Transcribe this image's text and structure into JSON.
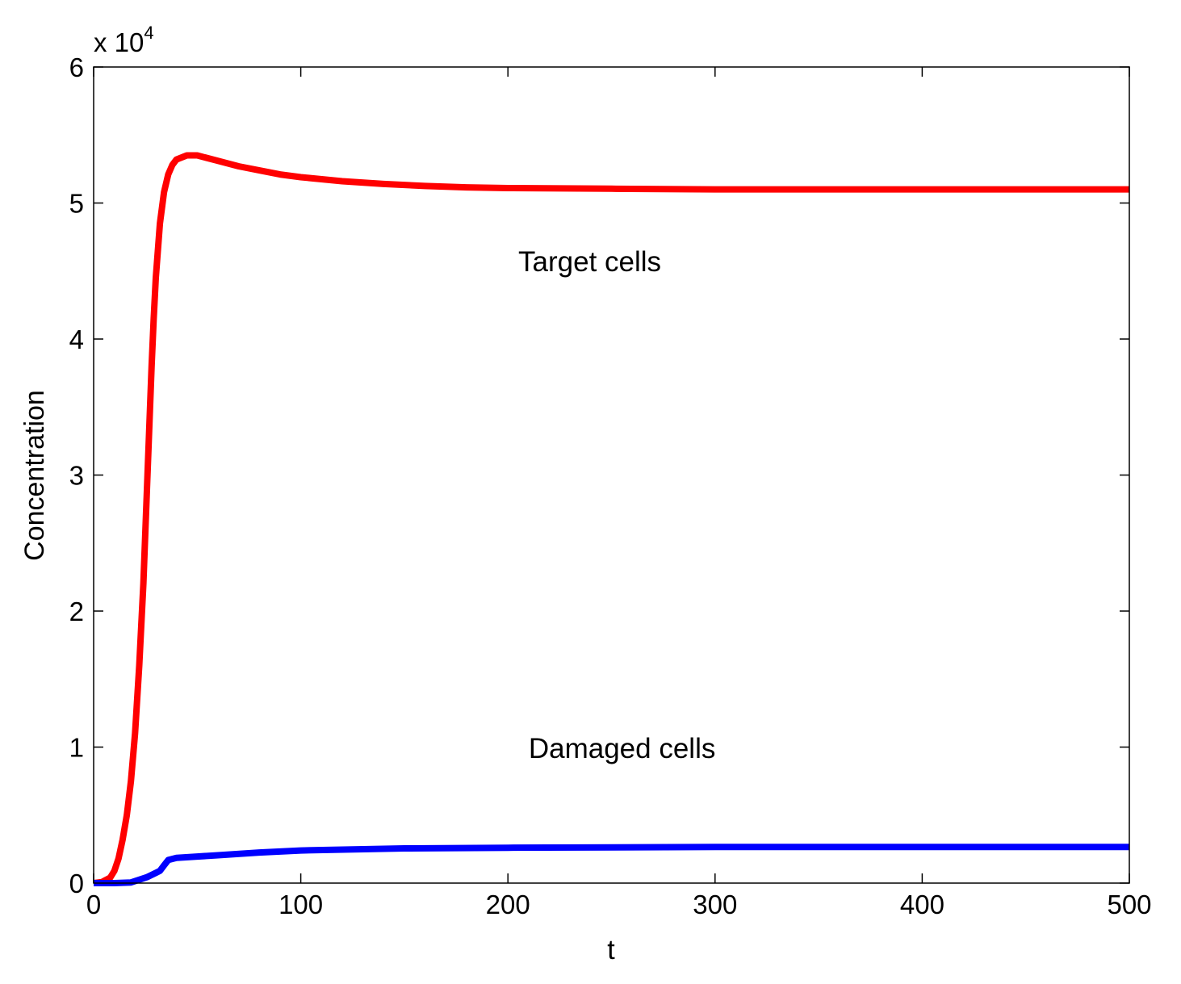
{
  "chart_data": {
    "type": "line",
    "xlabel": "t",
    "ylabel": "Concentration",
    "y_multiplier_label": {
      "base": "x 10",
      "exponent": "4"
    },
    "xlim": [
      0,
      500
    ],
    "ylim": [
      0,
      60000
    ],
    "xticks": [
      0,
      100,
      200,
      300,
      400,
      500
    ],
    "yticks": [
      0,
      10000,
      20000,
      30000,
      40000,
      50000,
      60000
    ],
    "xtick_labels": [
      "0",
      "100",
      "200",
      "300",
      "400",
      "500"
    ],
    "ytick_labels": [
      "0",
      "1",
      "2",
      "3",
      "4",
      "5",
      "6"
    ],
    "grid": false,
    "annotations": [
      {
        "text": "Target cells",
        "x": 205,
        "y": 45000
      },
      {
        "text": "Damaged cells",
        "x": 210,
        "y": 9200
      }
    ],
    "series": [
      {
        "color": "#ff0000",
        "points": [
          [
            0,
            0
          ],
          [
            4,
            80
          ],
          [
            8,
            400
          ],
          [
            10,
            900
          ],
          [
            12,
            1800
          ],
          [
            14,
            3200
          ],
          [
            16,
            5000
          ],
          [
            18,
            7500
          ],
          [
            20,
            11000
          ],
          [
            22,
            16000
          ],
          [
            24,
            22000
          ],
          [
            26,
            30000
          ],
          [
            28,
            38000
          ],
          [
            29,
            41500
          ],
          [
            30,
            44500
          ],
          [
            32,
            48500
          ],
          [
            34,
            50800
          ],
          [
            36,
            52100
          ],
          [
            38,
            52800
          ],
          [
            40,
            53200
          ],
          [
            45,
            53500
          ],
          [
            50,
            53500
          ],
          [
            60,
            53100
          ],
          [
            70,
            52700
          ],
          [
            80,
            52400
          ],
          [
            90,
            52100
          ],
          [
            100,
            51900
          ],
          [
            120,
            51600
          ],
          [
            140,
            51400
          ],
          [
            160,
            51250
          ],
          [
            180,
            51150
          ],
          [
            200,
            51100
          ],
          [
            250,
            51050
          ],
          [
            300,
            51000
          ],
          [
            400,
            51000
          ],
          [
            500,
            51000
          ]
        ]
      },
      {
        "color": "#0000ff",
        "points": [
          [
            0,
            0
          ],
          [
            10,
            0
          ],
          [
            18,
            50
          ],
          [
            22,
            250
          ],
          [
            26,
            450
          ],
          [
            30,
            750
          ],
          [
            32,
            900
          ],
          [
            34,
            1300
          ],
          [
            36,
            1700
          ],
          [
            40,
            1850
          ],
          [
            50,
            1950
          ],
          [
            60,
            2050
          ],
          [
            80,
            2250
          ],
          [
            100,
            2400
          ],
          [
            150,
            2550
          ],
          [
            200,
            2600
          ],
          [
            300,
            2650
          ],
          [
            400,
            2650
          ],
          [
            500,
            2650
          ]
        ]
      }
    ]
  }
}
